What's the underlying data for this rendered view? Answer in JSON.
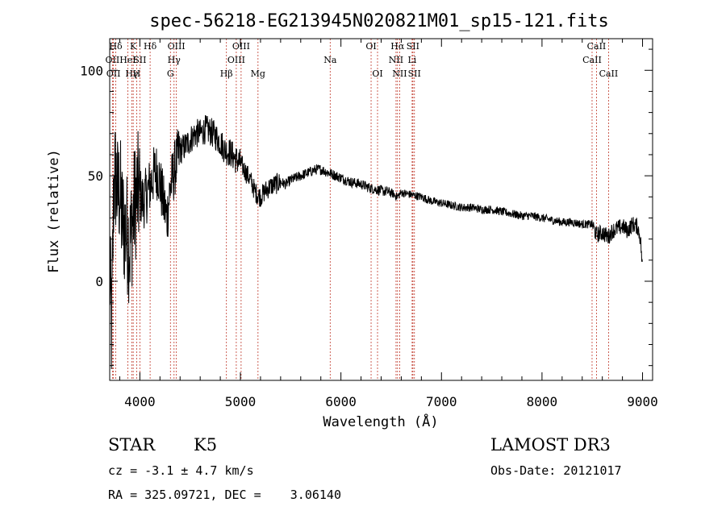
{
  "chart_data": {
    "type": "line",
    "title": "spec-56218-EG213945N020821M01_sp15-121.fits",
    "xlabel": "Wavelength (Å)",
    "ylabel": "Flux (relative)",
    "xlim": [
      3700,
      9100
    ],
    "ylim": [
      -47,
      115
    ],
    "x_ticks": [
      4000,
      5000,
      6000,
      7000,
      8000,
      9000
    ],
    "x_tick_labels": [
      "4000",
      "5000",
      "6000",
      "7000",
      "8000",
      "9000"
    ],
    "y_ticks": [
      0,
      50,
      100
    ],
    "y_tick_labels": [
      "0",
      "50",
      "100"
    ],
    "series": [
      {
        "name": "spectrum",
        "color": "#000000",
        "anchors": [
          [
            3700,
            5
          ],
          [
            3720,
            -25
          ],
          [
            3740,
            45
          ],
          [
            3760,
            50
          ],
          [
            3780,
            40
          ],
          [
            3800,
            44
          ],
          [
            3820,
            30
          ],
          [
            3850,
            25
          ],
          [
            3880,
            22
          ],
          [
            3900,
            16
          ],
          [
            3930,
            30
          ],
          [
            3960,
            40
          ],
          [
            3990,
            42
          ],
          [
            4030,
            38
          ],
          [
            4060,
            40
          ],
          [
            4090,
            44
          ],
          [
            4120,
            48
          ],
          [
            4150,
            52
          ],
          [
            4180,
            52
          ],
          [
            4210,
            44
          ],
          [
            4240,
            36
          ],
          [
            4270,
            30
          ],
          [
            4300,
            44
          ],
          [
            4330,
            50
          ],
          [
            4360,
            56
          ],
          [
            4400,
            62
          ],
          [
            4450,
            64
          ],
          [
            4500,
            67
          ],
          [
            4550,
            70
          ],
          [
            4600,
            70
          ],
          [
            4650,
            72
          ],
          [
            4700,
            71
          ],
          [
            4750,
            69
          ],
          [
            4800,
            66
          ],
          [
            4850,
            62
          ],
          [
            4900,
            61
          ],
          [
            4950,
            58
          ],
          [
            5000,
            56
          ],
          [
            5050,
            52
          ],
          [
            5100,
            48
          ],
          [
            5150,
            42
          ],
          [
            5200,
            40
          ],
          [
            5250,
            43
          ],
          [
            5300,
            45
          ],
          [
            5350,
            46
          ],
          [
            5400,
            47
          ],
          [
            5450,
            46
          ],
          [
            5500,
            48
          ],
          [
            5550,
            49
          ],
          [
            5600,
            50
          ],
          [
            5650,
            51
          ],
          [
            5700,
            52
          ],
          [
            5750,
            53
          ],
          [
            5800,
            53
          ],
          [
            5850,
            52
          ],
          [
            5900,
            51
          ],
          [
            5950,
            50
          ],
          [
            6000,
            49
          ],
          [
            6100,
            47
          ],
          [
            6200,
            46
          ],
          [
            6300,
            44
          ],
          [
            6400,
            43
          ],
          [
            6500,
            42
          ],
          [
            6560,
            40
          ],
          [
            6600,
            42
          ],
          [
            6700,
            41
          ],
          [
            6800,
            40
          ],
          [
            6900,
            38
          ],
          [
            7000,
            37
          ],
          [
            7100,
            36
          ],
          [
            7200,
            35
          ],
          [
            7300,
            35
          ],
          [
            7400,
            34
          ],
          [
            7500,
            34
          ],
          [
            7600,
            33
          ],
          [
            7700,
            32
          ],
          [
            7800,
            31
          ],
          [
            7900,
            31
          ],
          [
            8000,
            30
          ],
          [
            8100,
            29
          ],
          [
            8200,
            28
          ],
          [
            8300,
            28
          ],
          [
            8400,
            27
          ],
          [
            8500,
            27
          ],
          [
            8540,
            22
          ],
          [
            8600,
            23
          ],
          [
            8660,
            21
          ],
          [
            8700,
            24
          ],
          [
            8800,
            26
          ],
          [
            8850,
            24
          ],
          [
            8900,
            27
          ],
          [
            8950,
            26
          ],
          [
            8980,
            20
          ],
          [
            9000,
            5
          ]
        ]
      }
    ],
    "spectral_lines": [
      {
        "label": "Hδ",
        "x": 3760,
        "row": 0
      },
      {
        "label": "OII",
        "x": 3727,
        "row": 1
      },
      {
        "label": "OII",
        "x": 3737,
        "row": 2
      },
      {
        "label": "K",
        "x": 3934,
        "row": 0
      },
      {
        "label": "HeI",
        "x": 3880,
        "row": 1
      },
      {
        "label": "Hγ",
        "x": 3920,
        "row": 2
      },
      {
        "label": "Hδ",
        "x": 4102,
        "row": 0
      },
      {
        "label": "SII",
        "x": 4000,
        "row": 1
      },
      {
        "label": "H",
        "x": 3968,
        "row": 2
      },
      {
        "label": "OIII",
        "x": 4363,
        "row": 0
      },
      {
        "label": "Hγ",
        "x": 4340,
        "row": 1
      },
      {
        "label": "G",
        "x": 4304,
        "row": 2
      },
      {
        "label": "OIII",
        "x": 5007,
        "row": 0
      },
      {
        "label": "OIII",
        "x": 4959,
        "row": 1
      },
      {
        "label": "Hβ",
        "x": 4861,
        "row": 2
      },
      {
        "label": "Mg",
        "x": 5175,
        "row": 2
      },
      {
        "label": "Na",
        "x": 5893,
        "row": 1
      },
      {
        "label": "OI",
        "x": 6300,
        "row": 0
      },
      {
        "label": "OI",
        "x": 6364,
        "row": 2
      },
      {
        "label": "Hα",
        "x": 6563,
        "row": 0
      },
      {
        "label": "NII",
        "x": 6548,
        "row": 1
      },
      {
        "label": "NII",
        "x": 6584,
        "row": 2
      },
      {
        "label": "SII",
        "x": 6716,
        "row": 0
      },
      {
        "label": "Li",
        "x": 6708,
        "row": 1
      },
      {
        "label": "SII",
        "x": 6731,
        "row": 2
      },
      {
        "label": "CaII",
        "x": 8542,
        "row": 0
      },
      {
        "label": "CaII",
        "x": 8498,
        "row": 1
      },
      {
        "label": "CaII",
        "x": 8662,
        "row": 2
      }
    ]
  },
  "info": {
    "class_label": "STAR",
    "subclass": "K5",
    "survey": "LAMOST DR3",
    "cz": "cz = -3.1 ± 4.7 km/s",
    "obs_date": "Obs-Date: 20121017",
    "coords": "RA = 325.09721, DEC =    3.06140"
  }
}
